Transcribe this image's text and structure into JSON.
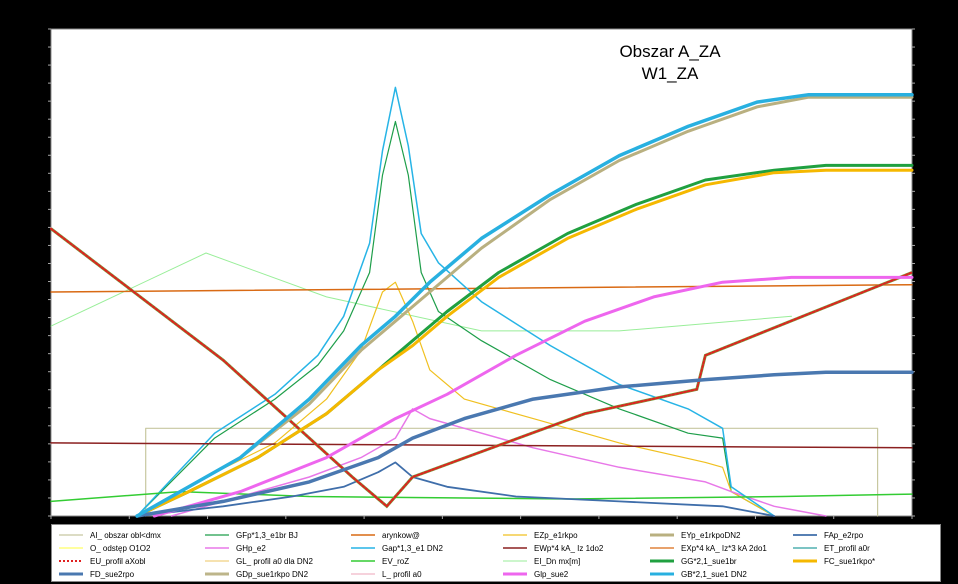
{
  "chart_data": {
    "type": "line",
    "title_lines": [
      "Obszar A_ZA",
      "W1_ZA"
    ],
    "xlim": [
      0,
      100
    ],
    "ylim": [
      0,
      100
    ],
    "grid": false,
    "legend_position": "bottom",
    "series": [
      {
        "name": "AI_ obszar obl<dmx",
        "color": "#c8c8a0",
        "width": 1.2,
        "points": [
          [
            11,
            0
          ],
          [
            11,
            18
          ],
          [
            96,
            18
          ],
          [
            96,
            0
          ]
        ]
      },
      {
        "name": "GFp*1,3_e1br  BJ",
        "color": "#1e9e4a",
        "width": 1.2,
        "points": [
          [
            10,
            0
          ],
          [
            19,
            16
          ],
          [
            26,
            24
          ],
          [
            31,
            31
          ],
          [
            34,
            38
          ],
          [
            37,
            50
          ],
          [
            38.5,
            70
          ],
          [
            40,
            81
          ],
          [
            41.5,
            70
          ],
          [
            43,
            50
          ],
          [
            45,
            42
          ],
          [
            50,
            36
          ],
          [
            58,
            28
          ],
          [
            66,
            22
          ],
          [
            74,
            17
          ],
          [
            78,
            16
          ],
          [
            79,
            5
          ],
          [
            84,
            0
          ]
        ]
      },
      {
        "name": "arynkow@",
        "color": "#d96a14",
        "width": 1.5,
        "points": [
          [
            0,
            46
          ],
          [
            100,
            47.5
          ]
        ]
      },
      {
        "name": "EZp_e1rkpo",
        "color": "#f0c020",
        "width": 1.2,
        "points": [
          [
            10,
            0
          ],
          [
            18,
            8
          ],
          [
            26,
            15
          ],
          [
            32,
            24
          ],
          [
            36,
            34
          ],
          [
            38.5,
            46
          ],
          [
            40,
            48
          ],
          [
            42,
            40
          ],
          [
            44,
            30
          ],
          [
            48,
            24
          ],
          [
            56,
            20
          ],
          [
            66,
            15
          ],
          [
            76,
            11
          ],
          [
            78,
            10
          ],
          [
            79,
            5
          ],
          [
            84,
            0
          ]
        ]
      },
      {
        "name": "EYp_e1rkpoDN2",
        "color": "#b9b080",
        "width": 3,
        "points": [
          [
            10,
            0
          ],
          [
            15,
            5
          ],
          [
            22,
            12
          ],
          [
            30,
            23
          ],
          [
            36,
            34
          ],
          [
            40,
            40
          ],
          [
            44,
            46
          ],
          [
            50,
            55
          ],
          [
            58,
            65
          ],
          [
            66,
            73
          ],
          [
            74,
            79
          ],
          [
            82,
            84
          ],
          [
            88,
            86
          ],
          [
            100,
            86
          ]
        ]
      },
      {
        "name": "FAp_e2rpo",
        "color": "#3f6eaa",
        "width": 1.8,
        "points": [
          [
            10,
            0
          ],
          [
            20,
            2
          ],
          [
            28,
            4
          ],
          [
            34,
            6
          ],
          [
            38,
            9
          ],
          [
            40,
            11
          ],
          [
            42,
            8
          ],
          [
            46,
            6
          ],
          [
            54,
            4
          ],
          [
            66,
            3
          ],
          [
            78,
            2
          ],
          [
            84,
            0
          ]
        ]
      },
      {
        "name": "O_  odstęp O1O2",
        "color": "#ffff66",
        "width": 1.2,
        "points": []
      },
      {
        "name": "GHp_e2",
        "color": "#e878e8",
        "width": 1.5,
        "points": [
          [
            14,
            0
          ],
          [
            22,
            4
          ],
          [
            30,
            8
          ],
          [
            36,
            12
          ],
          [
            40,
            16
          ],
          [
            42,
            22
          ],
          [
            44,
            20
          ],
          [
            48,
            18
          ],
          [
            56,
            14
          ],
          [
            66,
            10
          ],
          [
            76,
            7
          ],
          [
            79,
            5
          ],
          [
            84,
            2
          ],
          [
            90,
            0
          ]
        ]
      },
      {
        "name": "Gap*1,3_e1 DN2",
        "color": "#27b4e6",
        "width": 1.5,
        "points": [
          [
            10,
            0
          ],
          [
            19,
            17
          ],
          [
            26,
            25
          ],
          [
            31,
            33
          ],
          [
            34,
            41
          ],
          [
            37,
            56
          ],
          [
            38.5,
            75
          ],
          [
            40,
            88
          ],
          [
            41.5,
            76
          ],
          [
            43,
            58
          ],
          [
            45,
            52
          ],
          [
            50,
            44
          ],
          [
            58,
            35
          ],
          [
            66,
            27
          ],
          [
            74,
            22
          ],
          [
            78,
            18
          ],
          [
            79,
            6
          ],
          [
            84,
            0
          ]
        ]
      },
      {
        "name": "EWp*4 kA_ Iz 1do2",
        "color": "#8b2020",
        "width": 1.5,
        "points": [
          [
            0,
            15
          ],
          [
            100,
            14
          ]
        ]
      },
      {
        "name": "EXp*4 kA_ Iz*3 kA 2do1",
        "color": "#d96a14",
        "width": 1.2,
        "points": []
      },
      {
        "name": "ET_profil a0r",
        "color": "#2fa0a0",
        "width": 1.2,
        "points": []
      },
      {
        "name": "EU_profil aXobl",
        "color": "#e02020",
        "width": 2,
        "dashed": true,
        "points": [
          [
            0,
            59
          ],
          [
            20,
            32
          ],
          [
            35,
            8
          ],
          [
            39,
            2
          ],
          [
            42,
            8
          ],
          [
            62,
            21
          ],
          [
            75,
            26
          ],
          [
            76,
            33
          ],
          [
            100,
            50
          ]
        ]
      },
      {
        "name": "GL_  profil a0 dla DN2",
        "color": "#f0d080",
        "width": 1.2,
        "points": []
      },
      {
        "name": "EV_roZ",
        "color": "#33cc33",
        "width": 1.5,
        "points": [
          [
            0,
            3
          ],
          [
            15,
            5
          ],
          [
            30,
            4
          ],
          [
            60,
            3.5
          ],
          [
            85,
            4
          ],
          [
            100,
            4.5
          ]
        ]
      },
      {
        "name": "EI_Dn mx[m]",
        "color": "#99ee99",
        "width": 1,
        "points": [
          [
            0,
            39
          ],
          [
            18,
            54
          ],
          [
            32,
            45
          ],
          [
            50,
            38
          ],
          [
            66,
            38
          ],
          [
            86,
            41
          ]
        ]
      },
      {
        "name": "GG*2,1_sue1br",
        "color": "#20a040",
        "width": 3,
        "points": [
          [
            10,
            0
          ],
          [
            16,
            5
          ],
          [
            24,
            12
          ],
          [
            32,
            21
          ],
          [
            38,
            30
          ],
          [
            42,
            36
          ],
          [
            46,
            42
          ],
          [
            52,
            50
          ],
          [
            60,
            58
          ],
          [
            68,
            64
          ],
          [
            76,
            69
          ],
          [
            84,
            71
          ],
          [
            90,
            72
          ],
          [
            100,
            72
          ]
        ]
      },
      {
        "name": "FC_sue1rkpo*",
        "color": "#f5b800",
        "width": 3,
        "points": [
          [
            10,
            0
          ],
          [
            16,
            5
          ],
          [
            24,
            12
          ],
          [
            32,
            21
          ],
          [
            38,
            30
          ],
          [
            42,
            35
          ],
          [
            46,
            41
          ],
          [
            52,
            49
          ],
          [
            60,
            57
          ],
          [
            68,
            63
          ],
          [
            76,
            68
          ],
          [
            84,
            70.5
          ],
          [
            90,
            71
          ],
          [
            100,
            71
          ]
        ]
      },
      {
        "name": "FD_sue2rpo",
        "color": "#4a78b0",
        "width": 3.5,
        "points": [
          [
            10,
            0
          ],
          [
            20,
            3
          ],
          [
            30,
            7
          ],
          [
            38,
            12
          ],
          [
            42,
            16
          ],
          [
            48,
            20
          ],
          [
            56,
            24
          ],
          [
            66,
            26.5
          ],
          [
            76,
            28
          ],
          [
            84,
            29
          ],
          [
            90,
            29.5
          ],
          [
            100,
            29.5
          ]
        ]
      },
      {
        "name": "GDp_sue1rkpo DN2",
        "color": "#bdb58a",
        "width": 3,
        "points": []
      },
      {
        "name": "L_  profil  a0",
        "color": "#f0b8c8",
        "width": 1.2,
        "points": []
      },
      {
        "name": "Glp_sue2",
        "color": "#ee66ee",
        "width": 3,
        "points": [
          [
            12,
            0
          ],
          [
            22,
            5
          ],
          [
            32,
            12
          ],
          [
            40,
            20
          ],
          [
            46,
            25
          ],
          [
            54,
            33
          ],
          [
            62,
            40
          ],
          [
            70,
            45
          ],
          [
            78,
            48
          ],
          [
            86,
            49
          ],
          [
            100,
            49
          ]
        ]
      },
      {
        "name": "GB*2,1_sue1 DN2",
        "color": "#28b0e0",
        "width": 3.5,
        "points": [
          [
            10,
            0
          ],
          [
            15,
            5
          ],
          [
            22,
            12
          ],
          [
            30,
            24
          ],
          [
            36,
            35
          ],
          [
            40,
            41
          ],
          [
            44,
            48
          ],
          [
            50,
            57
          ],
          [
            58,
            66
          ],
          [
            66,
            74
          ],
          [
            74,
            80
          ],
          [
            82,
            85
          ],
          [
            88,
            86.5
          ],
          [
            100,
            86.5
          ]
        ]
      }
    ]
  }
}
